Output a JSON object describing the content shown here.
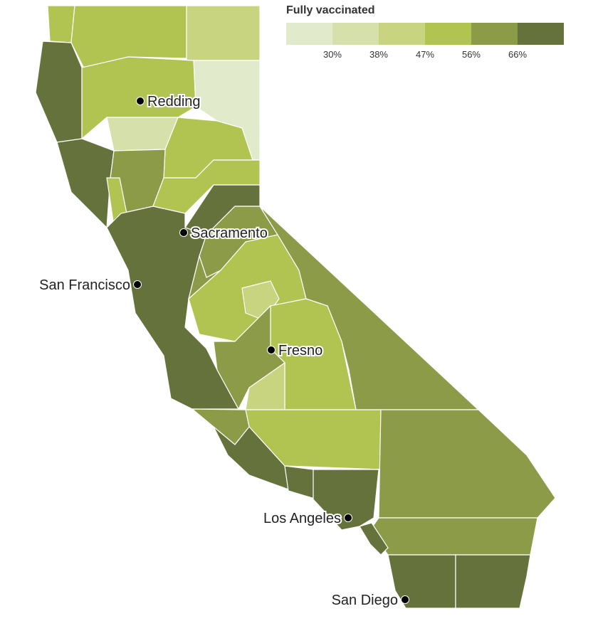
{
  "legend": {
    "title": "Fully vaccinated",
    "colors": [
      "#e1ebcb",
      "#d5e0aa",
      "#c8d47f",
      "#b1c452",
      "#8b9b48",
      "#65723c"
    ],
    "ticks": [
      "30%",
      "38%",
      "47%",
      "56%",
      "66%"
    ]
  },
  "cities": [
    {
      "name": "Redding"
    },
    {
      "name": "Sacramento"
    },
    {
      "name": "San Francisco"
    },
    {
      "name": "Fresno"
    },
    {
      "name": "Los Angeles"
    },
    {
      "name": "San Diego"
    }
  ]
}
